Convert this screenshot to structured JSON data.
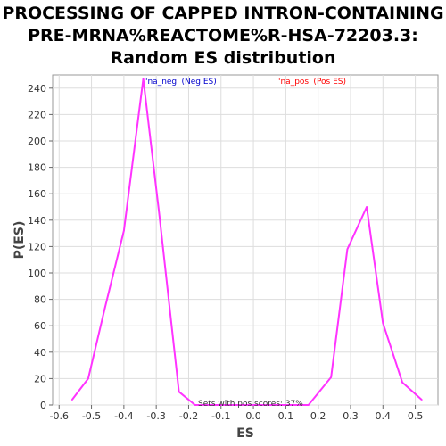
{
  "chart_data": {
    "type": "line",
    "title_lines": [
      "PROCESSING OF CAPPED INTRON-CONTAINING",
      "PRE-MRNA%REACTOME%R-HSA-72203.3:",
      "Random ES distribution"
    ],
    "xlabel": "ES",
    "ylabel": "P(ES)",
    "xlim": [
      -0.62,
      0.57
    ],
    "ylim": [
      0,
      250
    ],
    "xticks": [
      "-0.6",
      "-0.5",
      "-0.4",
      "-0.3",
      "-0.2",
      "-0.1",
      "0.0",
      "0.1",
      "0.2",
      "0.3",
      "0.4",
      "0.5"
    ],
    "xtick_values": [
      -0.6,
      -0.5,
      -0.4,
      -0.3,
      -0.2,
      -0.1,
      0.0,
      0.1,
      0.2,
      0.3,
      0.4,
      0.5
    ],
    "yticks": [
      "0",
      "20",
      "40",
      "60",
      "80",
      "100",
      "120",
      "140",
      "160",
      "180",
      "200",
      "220",
      "240"
    ],
    "ytick_values": [
      0,
      20,
      40,
      60,
      80,
      100,
      120,
      140,
      160,
      180,
      200,
      220,
      240
    ],
    "grid": true,
    "line_color": "#ff33ff",
    "legend": [
      {
        "label": "'na_neg' (Neg ES)",
        "color": "#0000cc"
      },
      {
        "label": "'na_pos' (Pos ES)",
        "color": "#ff0000"
      }
    ],
    "annotation": "Sets with pos scores: 37%",
    "series": [
      {
        "x": [
          -0.56,
          -0.51,
          -0.46,
          -0.4,
          -0.34,
          -0.29,
          -0.23,
          -0.18,
          -0.12,
          -0.07,
          -0.01,
          0.05,
          0.11,
          0.17,
          0.24,
          0.29,
          0.35,
          0.4,
          0.46,
          0.52
        ],
        "y": [
          4,
          20,
          72,
          132,
          247,
          143,
          10,
          0,
          0,
          0,
          0,
          0,
          0,
          0,
          21,
          118,
          150,
          62,
          17,
          4
        ]
      }
    ]
  }
}
